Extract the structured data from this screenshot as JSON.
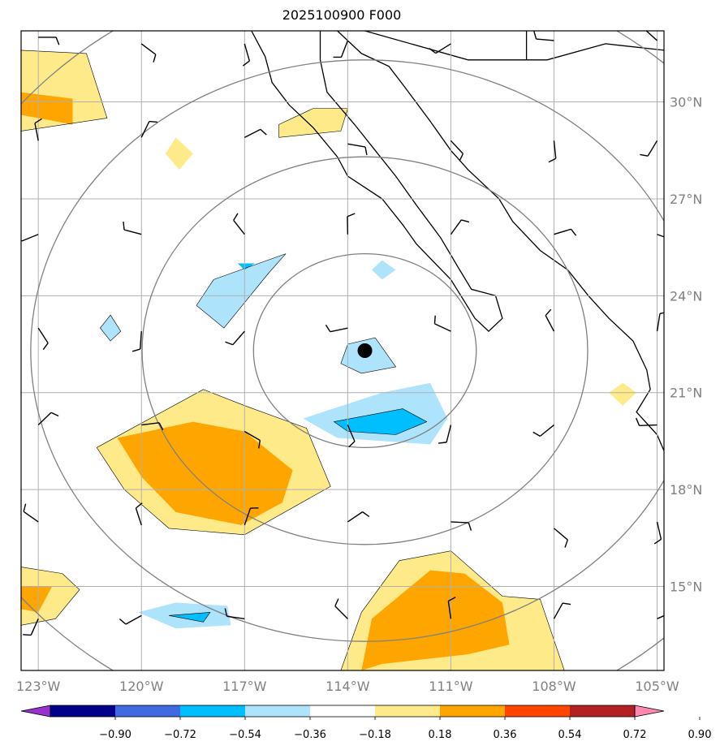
{
  "title": "2025100900 F000",
  "chart_data": {
    "type": "map",
    "title": "2025100900 F000",
    "lon_range": [
      -123.5,
      -104.8
    ],
    "lat_range": [
      12.4,
      32.2
    ],
    "lon_ticks": [
      {
        "value": -123,
        "label": "123°W"
      },
      {
        "value": -120,
        "label": "120°W"
      },
      {
        "value": -117,
        "label": "117°W"
      },
      {
        "value": -114,
        "label": "114°W"
      },
      {
        "value": -111,
        "label": "111°W"
      },
      {
        "value": -108,
        "label": "108°W"
      },
      {
        "value": -105,
        "label": "105°W"
      }
    ],
    "lat_ticks": [
      {
        "value": 30,
        "label": "30°N"
      },
      {
        "value": 27,
        "label": "27°N"
      },
      {
        "value": 24,
        "label": "24°N"
      },
      {
        "value": 21,
        "label": "21°N"
      },
      {
        "value": 18,
        "label": "18°N"
      },
      {
        "value": 15,
        "label": "15°N"
      }
    ],
    "grid": true,
    "center_marker": {
      "lon": -113.5,
      "lat": 22.3
    },
    "range_rings_degrees": [
      3,
      6,
      9,
      12
    ],
    "colorbar": {
      "levels": [
        "−0.90",
        "−0.72",
        "−0.54",
        "−0.36",
        "−0.18",
        "0.18",
        "0.36",
        "0.54",
        "0.72",
        "0.90"
      ],
      "colors": [
        "#9932cc",
        "#00008b",
        "#4169e1",
        "#00bfff",
        "#aee4fb",
        "#ffffff",
        "#ffea8a",
        "#ffa500",
        "#ff4500",
        "#b22222",
        "#ff88b0"
      ],
      "extend": "both"
    },
    "filled_regions": [
      {
        "level": 0.36,
        "color": "#ffea8a",
        "points": [
          [
            -123.5,
            31.6
          ],
          [
            -121.6,
            31.5
          ],
          [
            -121.0,
            29.5
          ],
          [
            -123.5,
            29.1
          ]
        ]
      },
      {
        "level": 0.54,
        "color": "#ffa500",
        "points": [
          [
            -123.5,
            30.3
          ],
          [
            -122.0,
            30.1
          ],
          [
            -122.0,
            29.3
          ],
          [
            -123.5,
            29.6
          ]
        ]
      },
      {
        "level": 0.36,
        "color": "#ffea8a",
        "points": [
          [
            -116.0,
            29.3
          ],
          [
            -115.0,
            29.8
          ],
          [
            -114.0,
            29.8
          ],
          [
            -114.2,
            29.1
          ],
          [
            -116.0,
            28.9
          ]
        ]
      },
      {
        "level": 0.36,
        "color": "#ffea8a",
        "points": [
          [
            -119.3,
            28.4
          ],
          [
            -119.0,
            28.9
          ],
          [
            -118.5,
            28.4
          ],
          [
            -118.9,
            27.9
          ]
        ]
      },
      {
        "level": 0.36,
        "color": "#ffea8a",
        "points": [
          [
            -121.3,
            19.3
          ],
          [
            -118.2,
            21.1
          ],
          [
            -117.0,
            20.6
          ],
          [
            -115.2,
            19.9
          ],
          [
            -114.5,
            18.1
          ],
          [
            -117.0,
            16.6
          ],
          [
            -119.2,
            16.8
          ],
          [
            -120.5,
            18.0
          ]
        ]
      },
      {
        "level": 0.54,
        "color": "#ffa500",
        "points": [
          [
            -120.7,
            19.6
          ],
          [
            -118.5,
            20.1
          ],
          [
            -117.0,
            19.8
          ],
          [
            -115.6,
            18.6
          ],
          [
            -115.9,
            17.6
          ],
          [
            -117.1,
            16.9
          ],
          [
            -119.0,
            17.3
          ],
          [
            -120.0,
            18.4
          ]
        ]
      },
      {
        "level": 0.36,
        "color": "#ffea8a",
        "points": [
          [
            -123.5,
            15.6
          ],
          [
            -122.3,
            15.4
          ],
          [
            -121.8,
            14.9
          ],
          [
            -122.5,
            14.0
          ],
          [
            -123.5,
            13.8
          ]
        ]
      },
      {
        "level": 0.54,
        "color": "#ffa500",
        "points": [
          [
            -123.5,
            15.0
          ],
          [
            -122.6,
            15.0
          ],
          [
            -123.0,
            14.2
          ],
          [
            -123.5,
            14.3
          ]
        ]
      },
      {
        "level": 0.36,
        "color": "#ffea8a",
        "points": [
          [
            -114.2,
            12.4
          ],
          [
            -113.6,
            14.2
          ],
          [
            -112.5,
            15.8
          ],
          [
            -111.0,
            16.1
          ],
          [
            -109.5,
            14.7
          ],
          [
            -108.4,
            14.6
          ],
          [
            -107.7,
            12.4
          ]
        ]
      },
      {
        "level": 0.54,
        "color": "#ffa500",
        "points": [
          [
            -113.6,
            12.4
          ],
          [
            -113.3,
            14.0
          ],
          [
            -111.6,
            15.5
          ],
          [
            -110.6,
            15.4
          ],
          [
            -109.5,
            14.5
          ],
          [
            -109.3,
            13.2
          ],
          [
            -110.5,
            12.9
          ],
          [
            -113.0,
            12.6
          ]
        ]
      },
      {
        "level": -0.36,
        "color": "#aee4fb",
        "points": [
          [
            -117.9,
            24.5
          ],
          [
            -115.8,
            25.3
          ],
          [
            -116.3,
            24.7
          ],
          [
            -117.6,
            23.0
          ],
          [
            -118.4,
            23.7
          ]
        ]
      },
      {
        "level": -0.54,
        "color": "#00bfff",
        "points": [
          [
            -117.2,
            25.0
          ],
          [
            -116.7,
            25.0
          ],
          [
            -117.0,
            24.8
          ]
        ]
      },
      {
        "level": -0.36,
        "color": "#aee4fb",
        "points": [
          [
            -121.2,
            23.0
          ],
          [
            -120.9,
            23.4
          ],
          [
            -120.6,
            22.9
          ],
          [
            -120.9,
            22.6
          ]
        ]
      },
      {
        "level": -0.36,
        "color": "#aee4fb",
        "points": [
          [
            -113.0,
            25.1
          ],
          [
            -112.6,
            24.8
          ],
          [
            -113.0,
            24.5
          ],
          [
            -113.3,
            24.8
          ]
        ]
      },
      {
        "level": -0.36,
        "color": "#aee4fb",
        "points": [
          [
            -114.0,
            22.5
          ],
          [
            -113.2,
            22.7
          ],
          [
            -112.6,
            21.8
          ],
          [
            -113.6,
            21.6
          ],
          [
            -114.2,
            21.9
          ]
        ]
      },
      {
        "level": -0.36,
        "color": "#aee4fb",
        "points": [
          [
            -115.3,
            20.2
          ],
          [
            -113.0,
            21.0
          ],
          [
            -111.6,
            21.3
          ],
          [
            -111.1,
            20.2
          ],
          [
            -111.6,
            19.4
          ],
          [
            -114.3,
            19.6
          ]
        ]
      },
      {
        "level": -0.54,
        "color": "#00bfff",
        "points": [
          [
            -114.4,
            20.1
          ],
          [
            -112.4,
            20.5
          ],
          [
            -111.7,
            20.1
          ],
          [
            -112.6,
            19.7
          ],
          [
            -114.0,
            19.8
          ]
        ]
      },
      {
        "level": -0.36,
        "color": "#aee4fb",
        "points": [
          [
            -120.1,
            14.2
          ],
          [
            -119.0,
            14.5
          ],
          [
            -117.5,
            14.4
          ],
          [
            -117.4,
            13.8
          ],
          [
            -119.0,
            13.7
          ]
        ]
      },
      {
        "level": -0.54,
        "color": "#00bfff",
        "points": [
          [
            -119.2,
            14.1
          ],
          [
            -118.0,
            14.2
          ],
          [
            -118.2,
            13.9
          ]
        ]
      },
      {
        "level": 0.36,
        "color": "#ffea8a",
        "points": [
          [
            -106.4,
            21.0
          ],
          [
            -106.0,
            21.3
          ],
          [
            -105.6,
            21.0
          ],
          [
            -106.0,
            20.6
          ]
        ]
      }
    ],
    "wind_barbs": [
      [
        -123,
        32.0
      ],
      [
        -120,
        31.8
      ],
      [
        -117,
        31.8
      ],
      [
        -114,
        31.9
      ],
      [
        -111,
        31.8
      ],
      [
        -108,
        31.9
      ],
      [
        -105,
        31.9
      ],
      [
        -123,
        28.8
      ],
      [
        -120,
        28.9
      ],
      [
        -117,
        28.9
      ],
      [
        -114,
        28.7
      ],
      [
        -111,
        28.8
      ],
      [
        -108,
        28.8
      ],
      [
        -105,
        28.8
      ],
      [
        -123,
        25.9
      ],
      [
        -120,
        25.9
      ],
      [
        -117,
        25.9
      ],
      [
        -114,
        25.9
      ],
      [
        -111,
        25.9
      ],
      [
        -108,
        25.9
      ],
      [
        -105,
        25.9
      ],
      [
        -123,
        23.0
      ],
      [
        -120,
        22.9
      ],
      [
        -117,
        22.9
      ],
      [
        -114,
        23.0
      ],
      [
        -111,
        22.9
      ],
      [
        -108,
        22.9
      ],
      [
        -105,
        22.9
      ],
      [
        -123,
        20.0
      ],
      [
        -120,
        20.0
      ],
      [
        -117,
        19.8
      ],
      [
        -114,
        20.0
      ],
      [
        -111,
        20.0
      ],
      [
        -108,
        20.0
      ],
      [
        -105,
        20.0
      ],
      [
        -123,
        17.0
      ],
      [
        -120,
        16.9
      ],
      [
        -117,
        16.9
      ],
      [
        -114,
        17.0
      ],
      [
        -111,
        17.0
      ],
      [
        -108,
        16.8
      ],
      [
        -105,
        17.0
      ],
      [
        -123,
        14.0
      ],
      [
        -120,
        14.1
      ],
      [
        -117,
        14.0
      ],
      [
        -114,
        14.0
      ],
      [
        -111,
        14.0
      ],
      [
        -108,
        14.0
      ],
      [
        -105,
        14.0
      ]
    ]
  }
}
